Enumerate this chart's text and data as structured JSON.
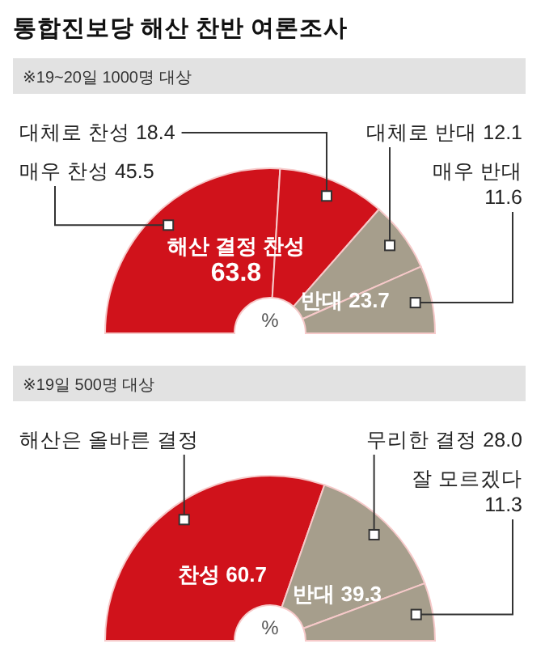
{
  "chart_data": [
    {
      "type": "donut",
      "title": "통합진보당 해산 찬반 여론조사",
      "subtitle": "※19~20일 1000명 대상",
      "categories": [
        "매우 찬성",
        "대체로 찬성",
        "대체로 반대",
        "매우 반대"
      ],
      "values": [
        45.5,
        18.4,
        12.1,
        11.6
      ],
      "value_labels": [
        "45.5",
        "18.4",
        "12.1",
        "11.6"
      ],
      "colors": [
        "#d0121b",
        "#d0121b",
        "#a69e8c",
        "#a69e8c"
      ],
      "annotations": [
        "해산 결정 찬성\n63.8",
        "반대 23.7",
        "%"
      ]
    },
    {
      "type": "donut",
      "subtitle": "※19일 500명 대상",
      "categories": [
        "해산은 올바른 결정",
        "무리한 결정",
        "잘 모르겠다"
      ],
      "values": [
        60.7,
        28.0,
        11.3
      ],
      "value_labels": [
        null,
        "28.0",
        "11.3"
      ],
      "colors": [
        "#d0121b",
        "#a69e8c",
        "#a69e8c"
      ],
      "annotations": [
        "찬성 60.7",
        "반대 39.3",
        "%"
      ]
    }
  ]
}
